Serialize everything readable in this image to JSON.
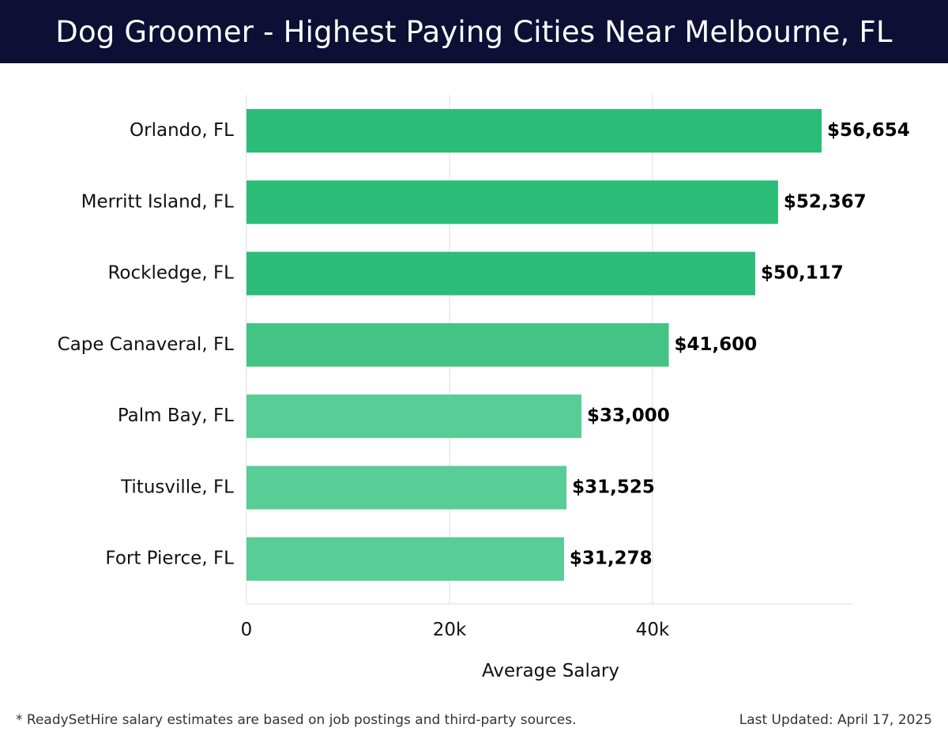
{
  "header": {
    "title": "Dog Groomer - Highest Paying Cities Near Melbourne, FL"
  },
  "colors": {
    "header_bg": "#0d0f35",
    "bar_dark": "#2bbd77",
    "bar_mid": "#43c485",
    "bar_light": "#58cd95",
    "grid": "#dddddd",
    "value_label": "#000000"
  },
  "chart_data": {
    "type": "bar",
    "orientation": "horizontal",
    "title": "Dog Groomer - Highest Paying Cities Near Melbourne, FL",
    "categories": [
      "Orlando, FL",
      "Merritt Island, FL",
      "Rockledge, FL",
      "Cape Canaveral, FL",
      "Palm Bay, FL",
      "Titusville, FL",
      "Fort Pierce, FL"
    ],
    "values": [
      56654,
      52367,
      50117,
      41600,
      33000,
      31525,
      31278
    ],
    "value_labels": [
      "$56,654",
      "$52,367",
      "$50,117",
      "$41,600",
      "$33,000",
      "$31,525",
      "$31,278"
    ],
    "xlabel": "Average Salary",
    "ylabel": "",
    "xlim": [
      0,
      60000
    ],
    "xticks": [
      0,
      20000,
      40000
    ],
    "xtick_labels": [
      "0",
      "20k",
      "40k"
    ],
    "grid": true
  },
  "footer": {
    "note": "* ReadySetHire salary estimates are based on job postings and third-party sources.",
    "updated": "Last Updated: April 17, 2025"
  }
}
